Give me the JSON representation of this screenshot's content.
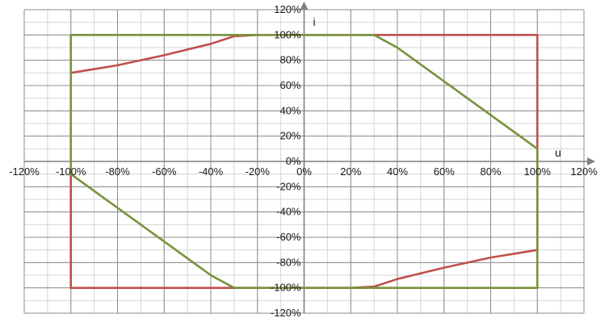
{
  "chart_data": {
    "type": "line",
    "title": "",
    "xlabel": "u",
    "ylabel": "i",
    "xlim": [
      -1.2,
      1.2
    ],
    "ylim": [
      -1.2,
      1.2
    ],
    "grid": true,
    "grid_minor_step": 0.1,
    "x_ticks": [
      -1.2,
      -1.0,
      -0.8,
      -0.6,
      -0.4,
      -0.2,
      0,
      0.2,
      0.4,
      0.6,
      0.8,
      1.0,
      1.2
    ],
    "y_ticks": [
      -1.2,
      -1.0,
      -0.8,
      -0.6,
      -0.4,
      -0.2,
      0,
      0.2,
      0.4,
      0.6,
      0.8,
      1.0,
      1.2
    ],
    "x_tick_labels": [
      "-120%",
      "-100%",
      "-80%",
      "-60%",
      "-40%",
      "-20%",
      "0%",
      "20%",
      "40%",
      "60%",
      "80%",
      "100%",
      "120%"
    ],
    "y_tick_labels": [
      "-120%",
      "-100%",
      "-80%",
      "-60%",
      "-40%",
      "-20%",
      "0%",
      "20%",
      "40%",
      "60%",
      "80%",
      "100%",
      "120%"
    ],
    "series": [
      {
        "color": "#c0504d",
        "points": [
          [
            -1.0,
            0.7
          ],
          [
            -0.8,
            0.76
          ],
          [
            -0.6,
            0.84
          ],
          [
            -0.4,
            0.93
          ],
          [
            -0.3,
            0.99
          ],
          [
            -0.2,
            1.0
          ],
          [
            1.0,
            1.0
          ],
          [
            1.0,
            -0.7
          ],
          [
            0.8,
            -0.76
          ],
          [
            0.6,
            -0.84
          ],
          [
            0.4,
            -0.93
          ],
          [
            0.3,
            -0.99
          ],
          [
            0.2,
            -1.0
          ],
          [
            -1.0,
            -1.0
          ],
          [
            -1.0,
            -0.08
          ]
        ]
      },
      {
        "color": "#77933c",
        "points": [
          [
            -1.0,
            -0.08
          ],
          [
            -1.0,
            1.0
          ],
          [
            0.3,
            1.0
          ],
          [
            0.4,
            0.9
          ],
          [
            1.0,
            0.1
          ],
          [
            1.0,
            -1.0
          ],
          [
            -0.3,
            -1.0
          ],
          [
            -0.4,
            -0.9
          ],
          [
            -1.0,
            -0.1
          ]
        ]
      }
    ]
  }
}
